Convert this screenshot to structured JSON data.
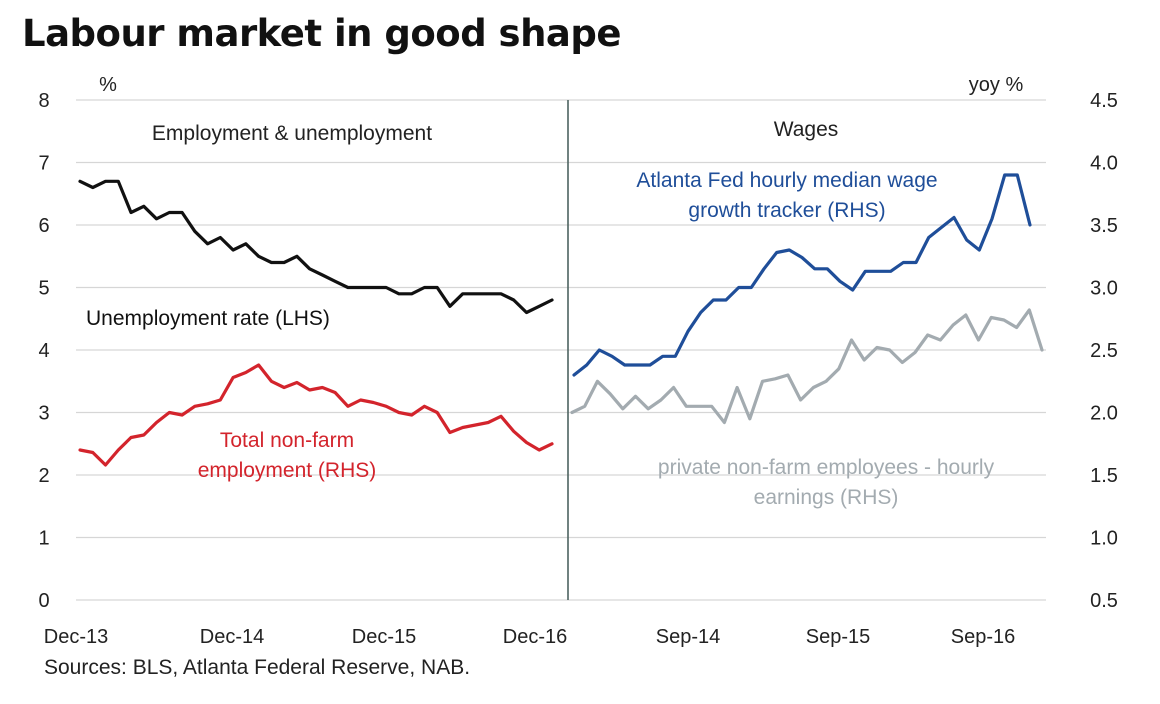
{
  "title": "Labour market in good shape",
  "source": "Sources: BLS, Atlanta Federal Reserve, NAB.",
  "colors": {
    "black": "#111111",
    "red": "#d3242c",
    "blue": "#1f4e99",
    "grey": "#a3abb0",
    "grid": "#d6d6d6",
    "divider": "#4d6360"
  },
  "chart_data": {
    "type": "line",
    "title": "Labour market in good shape",
    "left_axis": {
      "unit": "%",
      "ylim": [
        0,
        8
      ],
      "ticks": [
        "0",
        "1",
        "2",
        "3",
        "4",
        "5",
        "6",
        "7",
        "8"
      ]
    },
    "right_axis": {
      "unit": "yoy %",
      "ylim": [
        0.5,
        4.5
      ],
      "ticks": [
        "0.5",
        "1.0",
        "1.5",
        "2.0",
        "2.5",
        "3.0",
        "3.5",
        "4.0",
        "4.5"
      ]
    },
    "grid": true,
    "panels": [
      {
        "name": "left",
        "title": "Employment & unemployment",
        "x_ticks": [
          "Dec-13",
          "Dec-14",
          "Dec-15",
          "Dec-16"
        ],
        "series": [
          {
            "name": "Unemployment rate (LHS)",
            "label_lines": [
              "Unemployment rate (LHS)"
            ],
            "axis": "left",
            "color": "black",
            "values": [
              6.7,
              6.6,
              6.7,
              6.7,
              6.2,
              6.3,
              6.1,
              6.2,
              6.2,
              5.9,
              5.7,
              5.8,
              5.6,
              5.7,
              5.5,
              5.4,
              5.4,
              5.5,
              5.3,
              5.2,
              5.1,
              5.0,
              5.0,
              5.0,
              5.0,
              4.9,
              4.9,
              5.0,
              5.0,
              4.7,
              4.9,
              4.9,
              4.9,
              4.9,
              4.8,
              4.6,
              4.7,
              4.8
            ]
          },
          {
            "name": "Total non-farm employment (RHS)",
            "label_lines": [
              "Total non-farm",
              "employment (RHS)"
            ],
            "axis": "right",
            "color": "red",
            "values": [
              1.7,
              1.68,
              1.58,
              1.7,
              1.8,
              1.82,
              1.92,
              2.0,
              1.98,
              2.05,
              2.07,
              2.1,
              2.28,
              2.32,
              2.38,
              2.25,
              2.2,
              2.24,
              2.18,
              2.2,
              2.16,
              2.05,
              2.1,
              2.08,
              2.05,
              2.0,
              1.98,
              2.05,
              2.0,
              1.84,
              1.88,
              1.9,
              1.92,
              1.97,
              1.85,
              1.76,
              1.7,
              1.75
            ]
          }
        ]
      },
      {
        "name": "right",
        "title": "Wages",
        "x_ticks": [
          "Sep-14",
          "Sep-15",
          "Sep-16"
        ],
        "series": [
          {
            "name": "Atlanta Fed hourly median wage growth tracker (RHS)",
            "label_lines": [
              "Atlanta Fed hourly median wage",
              "growth tracker (RHS)"
            ],
            "axis": "right",
            "color": "blue",
            "values": [
              2.3,
              2.38,
              2.5,
              2.45,
              2.38,
              2.38,
              2.38,
              2.45,
              2.45,
              2.65,
              2.8,
              2.9,
              2.9,
              3.0,
              3.0,
              3.15,
              3.28,
              3.3,
              3.24,
              3.15,
              3.15,
              3.05,
              2.98,
              3.13,
              3.13,
              3.13,
              3.2,
              3.2,
              3.4,
              3.48,
              3.56,
              3.38,
              3.3,
              3.55,
              3.9,
              3.9,
              3.5
            ]
          },
          {
            "name": "private non-farm employees - hourly earnings (RHS)",
            "label_lines": [
              "private non-farm employees - hourly",
              "earnings (RHS)"
            ],
            "axis": "right",
            "color": "grey",
            "values": [
              2.0,
              2.05,
              2.25,
              2.15,
              2.03,
              2.13,
              2.03,
              2.1,
              2.2,
              2.05,
              2.05,
              2.05,
              1.92,
              2.2,
              1.95,
              2.25,
              2.27,
              2.3,
              2.1,
              2.2,
              2.25,
              2.35,
              2.58,
              2.42,
              2.52,
              2.5,
              2.4,
              2.48,
              2.62,
              2.58,
              2.7,
              2.78,
              2.58,
              2.76,
              2.74,
              2.68,
              2.82,
              2.5
            ]
          }
        ]
      }
    ]
  }
}
